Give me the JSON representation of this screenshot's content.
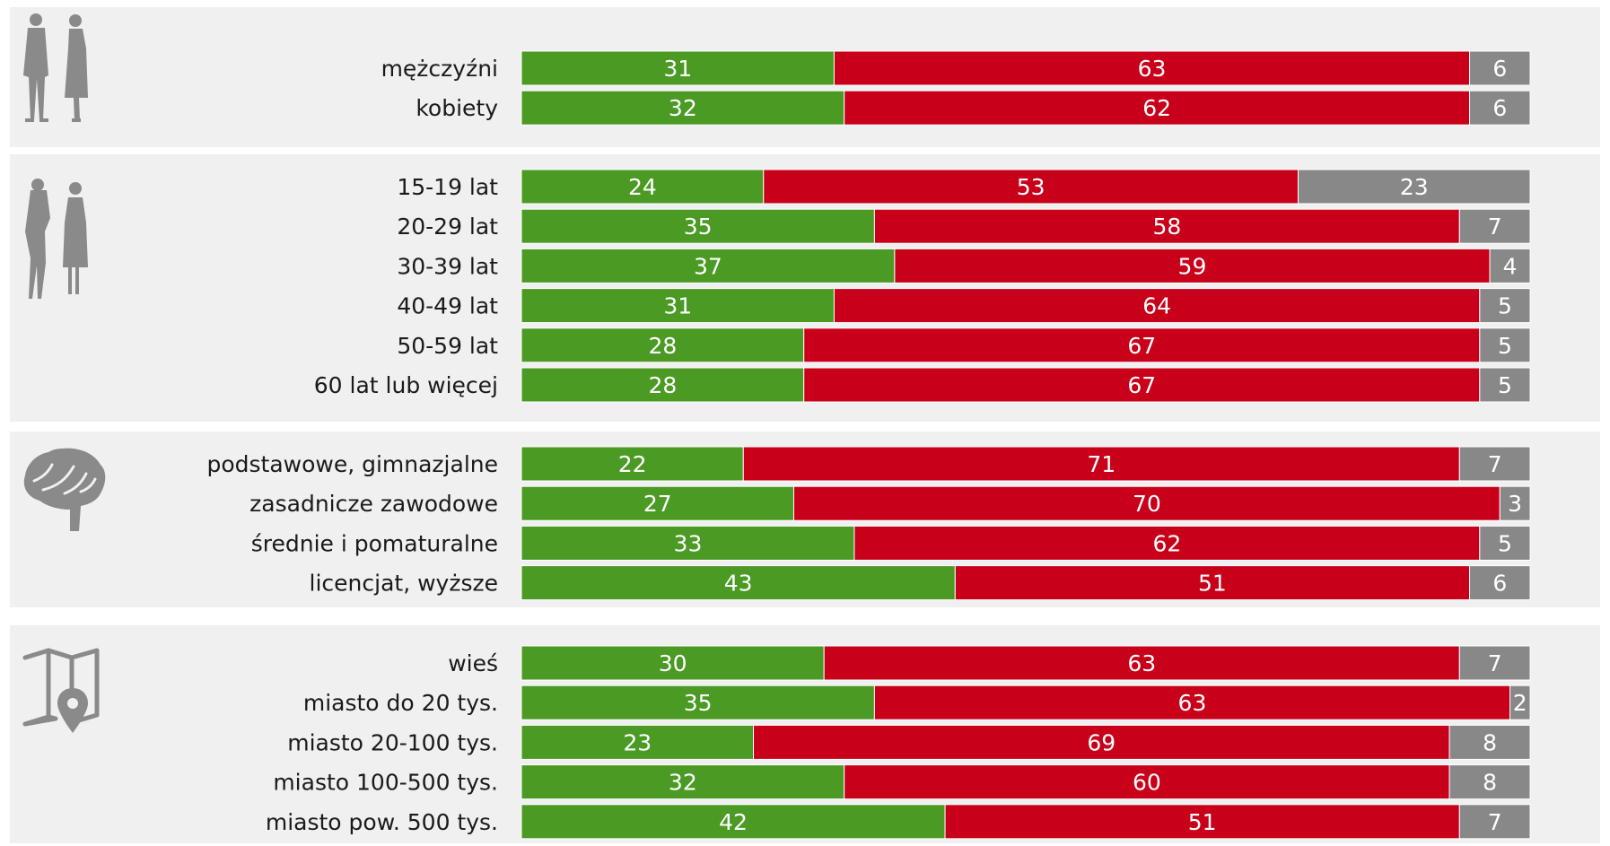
{
  "chart_data": {
    "type": "bar",
    "orientation": "horizontal",
    "stacked": true,
    "normalized_percent": true,
    "colors": {
      "yes": "#4a9a24",
      "no": "#c8001a",
      "other": "#888888",
      "panel": "#f0f0f0"
    },
    "groups": [
      {
        "icon": "couple-silhouette-icon",
        "rows": [
          {
            "label": "mężczyźni",
            "values": [
              31,
              63,
              6
            ]
          },
          {
            "label": "kobiety",
            "values": [
              32,
              62,
              6
            ]
          }
        ]
      },
      {
        "icon": "young-and-old-women-icon",
        "rows": [
          {
            "label": "15-19 lat",
            "values": [
              24,
              53,
              23
            ]
          },
          {
            "label": "20-29 lat",
            "values": [
              35,
              58,
              7
            ]
          },
          {
            "label": "30-39 lat",
            "values": [
              37,
              59,
              4
            ]
          },
          {
            "label": "40-49 lat",
            "values": [
              31,
              64,
              5
            ]
          },
          {
            "label": "50-59 lat",
            "values": [
              28,
              67,
              5
            ]
          },
          {
            "label": "60 lat lub więcej",
            "values": [
              28,
              67,
              5
            ]
          }
        ]
      },
      {
        "icon": "brain-icon",
        "rows": [
          {
            "label": "podstawowe, gimnazjalne",
            "values": [
              22,
              71,
              7
            ]
          },
          {
            "label": "zasadnicze zawodowe",
            "values": [
              27,
              70,
              3
            ]
          },
          {
            "label": "średnie i pomaturalne",
            "values": [
              33,
              62,
              5
            ]
          },
          {
            "label": "licencjat, wyższe",
            "values": [
              43,
              51,
              6
            ]
          }
        ]
      },
      {
        "icon": "map-pin-icon",
        "rows": [
          {
            "label": "wieś",
            "values": [
              30,
              63,
              7
            ]
          },
          {
            "label": "miasto do 20 tys.",
            "values": [
              35,
              63,
              2
            ]
          },
          {
            "label": "miasto 20-100 tys.",
            "values": [
              23,
              69,
              8
            ]
          },
          {
            "label": "miasto 100-500 tys.",
            "values": [
              32,
              60,
              8
            ]
          },
          {
            "label": "miasto pow. 500 tys.",
            "values": [
              42,
              51,
              7
            ]
          }
        ]
      }
    ]
  }
}
